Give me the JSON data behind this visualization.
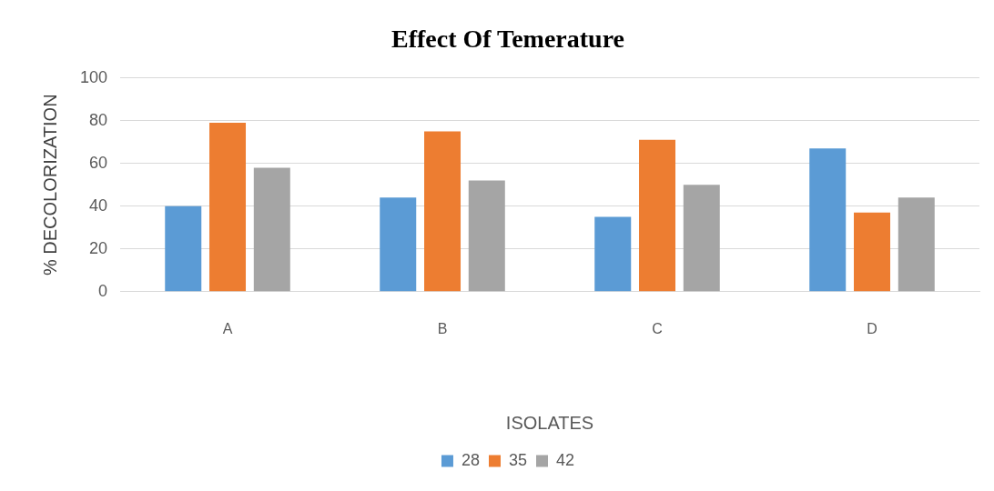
{
  "chart_data": {
    "type": "bar",
    "title": "Effect Of Temerature",
    "xlabel": "ISOLATES",
    "ylabel": "% DECOLORIZATION",
    "categories": [
      "A",
      "B",
      "C",
      "D"
    ],
    "series": [
      {
        "name": "28",
        "color": "#5b9bd5",
        "values": [
          40,
          44,
          35,
          67
        ]
      },
      {
        "name": "35",
        "color": "#ed7d31",
        "values": [
          79,
          75,
          71,
          37
        ]
      },
      {
        "name": "42",
        "color": "#a5a5a5",
        "values": [
          58,
          52,
          50,
          44
        ]
      }
    ],
    "ylim": [
      0,
      100
    ],
    "yticks": [
      0,
      20,
      40,
      60,
      80,
      100
    ],
    "grid": "y",
    "legend": "bottom"
  }
}
